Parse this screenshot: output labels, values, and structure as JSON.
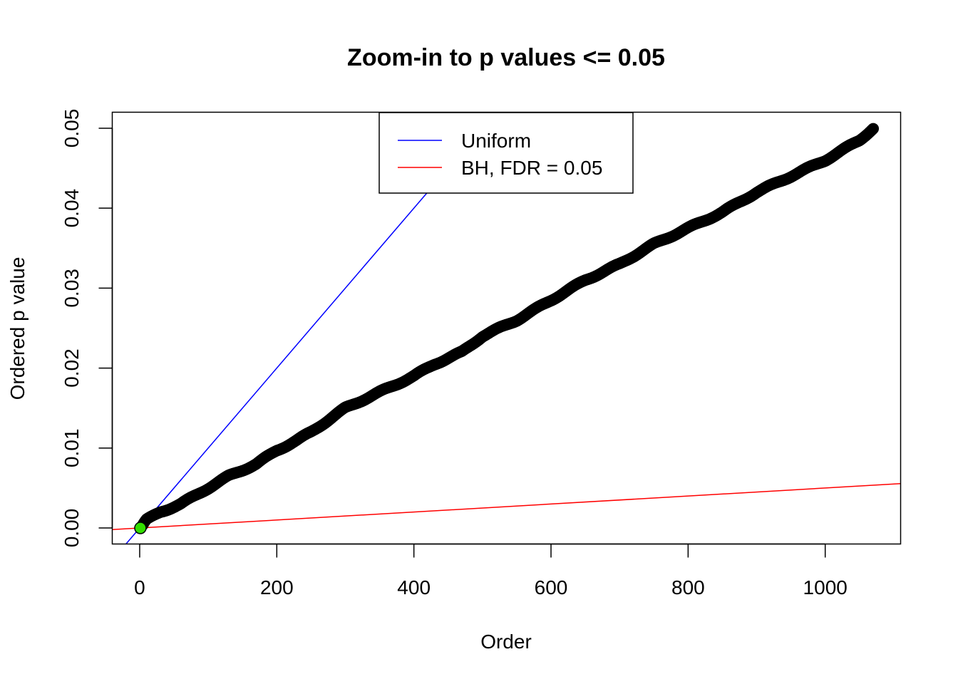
{
  "chart_data": {
    "type": "scatter",
    "title": "Zoom-in to p values <= 0.05",
    "xlabel": "Order",
    "ylabel": "Ordered p value",
    "xlim": [
      -40,
      1110
    ],
    "ylim": [
      -0.002,
      0.052
    ],
    "x_ticks": [
      0,
      200,
      400,
      600,
      800,
      1000
    ],
    "x_tick_labels": [
      "0",
      "200",
      "400",
      "600",
      "800",
      "1000"
    ],
    "y_ticks": [
      0.0,
      0.01,
      0.02,
      0.03,
      0.04,
      0.05
    ],
    "y_tick_labels": [
      "0.00",
      "0.01",
      "0.02",
      "0.03",
      "0.04",
      "0.05"
    ],
    "grid": false,
    "legend_position": "top-center",
    "series": [
      {
        "name": "",
        "kind": "points",
        "color": "#000000",
        "highlight_first_color": "#33dd00",
        "x_start": 1,
        "x_end": 1070,
        "anchors": [
          [
            1,
            0.0
          ],
          [
            10,
            0.001
          ],
          [
            30,
            0.002
          ],
          [
            60,
            0.003
          ],
          [
            80,
            0.004
          ],
          [
            100,
            0.005
          ],
          [
            130,
            0.0065
          ],
          [
            170,
            0.008
          ],
          [
            200,
            0.0097
          ],
          [
            230,
            0.011
          ],
          [
            250,
            0.012
          ],
          [
            280,
            0.0138
          ],
          [
            300,
            0.015
          ],
          [
            350,
            0.017
          ],
          [
            400,
            0.019
          ],
          [
            430,
            0.0205
          ],
          [
            470,
            0.022
          ],
          [
            500,
            0.024
          ],
          [
            550,
            0.026
          ],
          [
            600,
            0.0285
          ],
          [
            650,
            0.031
          ],
          [
            700,
            0.033
          ],
          [
            750,
            0.0355
          ],
          [
            800,
            0.0375
          ],
          [
            850,
            0.0395
          ],
          [
            900,
            0.042
          ],
          [
            950,
            0.044
          ],
          [
            1000,
            0.046
          ],
          [
            1050,
            0.0485
          ],
          [
            1070,
            0.05
          ]
        ]
      },
      {
        "name": "Uniform",
        "kind": "abline",
        "color": "#0000ff",
        "intercept": 0,
        "slope": 0.0001
      },
      {
        "name": "BH, FDR = 0.05",
        "kind": "abline",
        "color": "#ff0000",
        "intercept": 0,
        "slope": 5e-06
      }
    ],
    "legend": [
      {
        "label": "Uniform",
        "color": "#0000ff"
      },
      {
        "label": "BH, FDR = 0.05",
        "color": "#ff0000"
      }
    ]
  }
}
